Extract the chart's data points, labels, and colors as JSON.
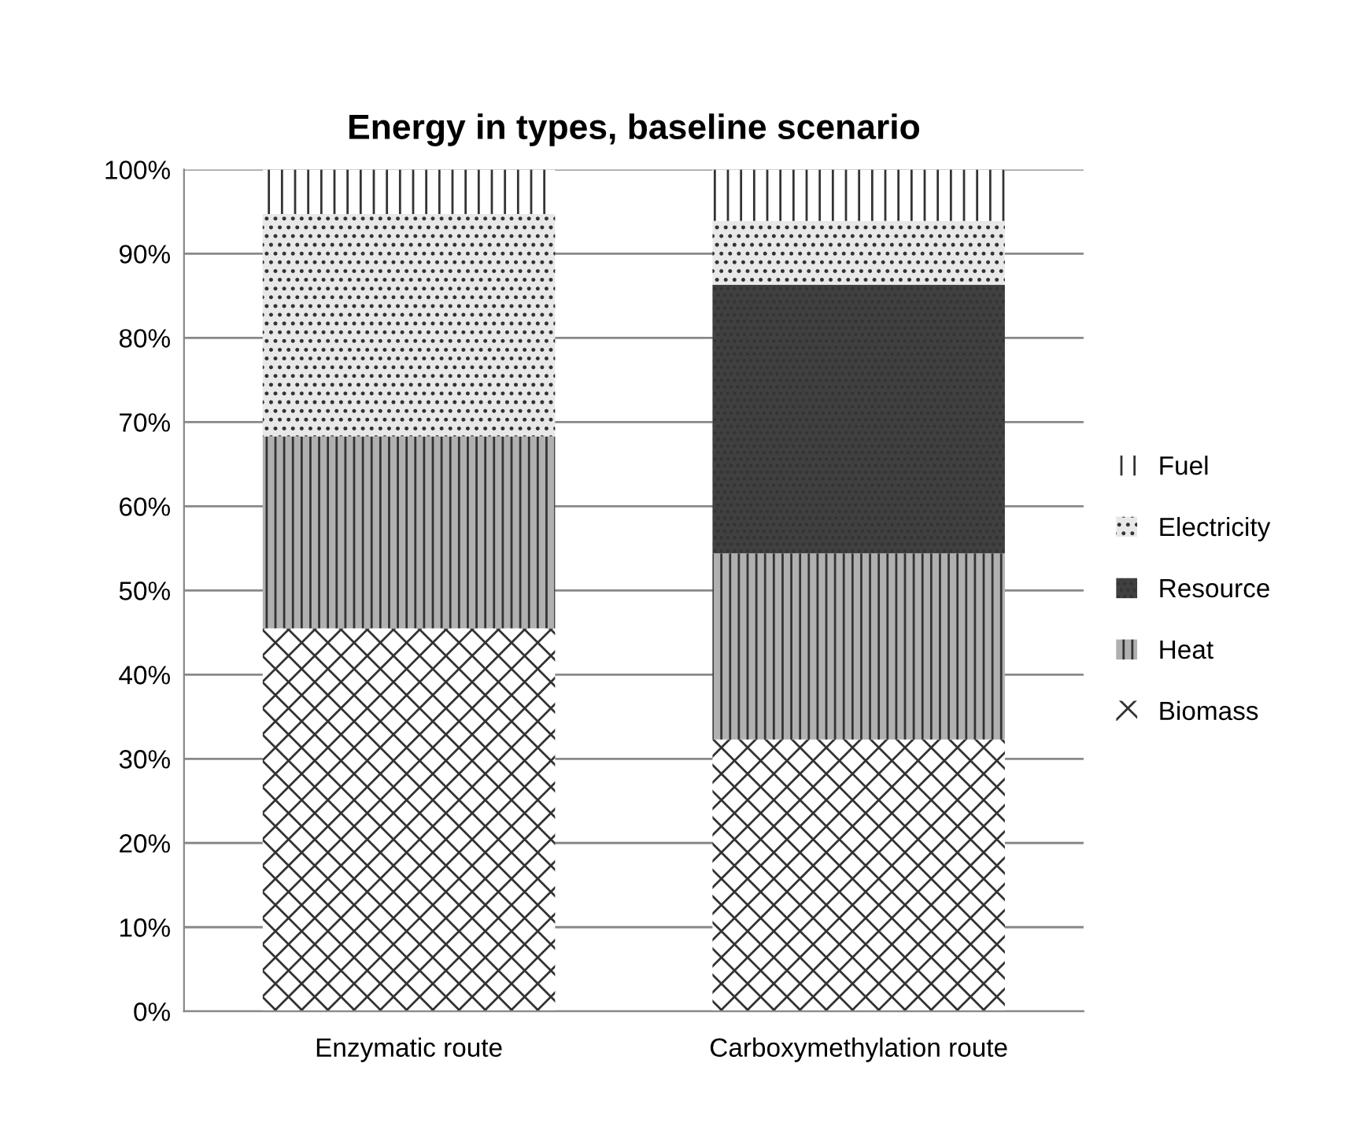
{
  "chart_data": {
    "type": "bar",
    "title": "Energy in types, baseline scenario",
    "categories": [
      "Enzymatic route",
      "Carboxymethylation route"
    ],
    "stacked": true,
    "series": [
      {
        "name": "Biomass",
        "color": "#ffffff",
        "values": [
          45.5,
          32.3
        ]
      },
      {
        "name": "Heat",
        "color": "#b0b0b0",
        "values": [
          22.8,
          22.1
        ]
      },
      {
        "name": "Resource",
        "color": "#404040",
        "values": [
          0,
          31.9
        ]
      },
      {
        "name": "Electricity",
        "color": "#e8e8e8",
        "values": [
          26.4,
          7.6
        ]
      },
      {
        "name": "Fuel",
        "color": "#ffffff",
        "values": [
          5.3,
          6.1
        ]
      }
    ],
    "ylim": [
      0,
      100
    ],
    "yticks": [
      {
        "value": 0,
        "label": "0%"
      },
      {
        "value": 10,
        "label": "10%"
      },
      {
        "value": 20,
        "label": "20%"
      },
      {
        "value": 30,
        "label": "30%"
      },
      {
        "value": 40,
        "label": "40%"
      },
      {
        "value": 50,
        "label": "50%"
      },
      {
        "value": 60,
        "label": "60%"
      },
      {
        "value": 70,
        "label": "70%"
      },
      {
        "value": 80,
        "label": "80%"
      },
      {
        "value": 90,
        "label": "90%"
      },
      {
        "value": 100,
        "label": "100%"
      }
    ],
    "grid": "y",
    "legend": "right"
  }
}
